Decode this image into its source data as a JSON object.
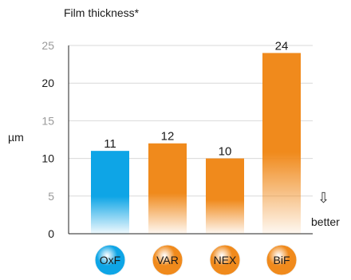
{
  "chart_data": {
    "type": "bar",
    "title": "Film thickness*",
    "ylabel": "µm",
    "ylim": [
      0,
      25
    ],
    "yticks": [
      0,
      5,
      10,
      15,
      20,
      25
    ],
    "categories": [
      "OxF",
      "VAR",
      "NEX",
      "BiF"
    ],
    "values": [
      11,
      12,
      10,
      24
    ],
    "colors": {
      "OxF": "#0ea5e6",
      "VAR": "#f08a1c",
      "NEX": "#f08a1c",
      "BiF": "#f08a1c"
    },
    "grid": true,
    "annotation": {
      "arrow": "⇩",
      "label": "better"
    }
  }
}
